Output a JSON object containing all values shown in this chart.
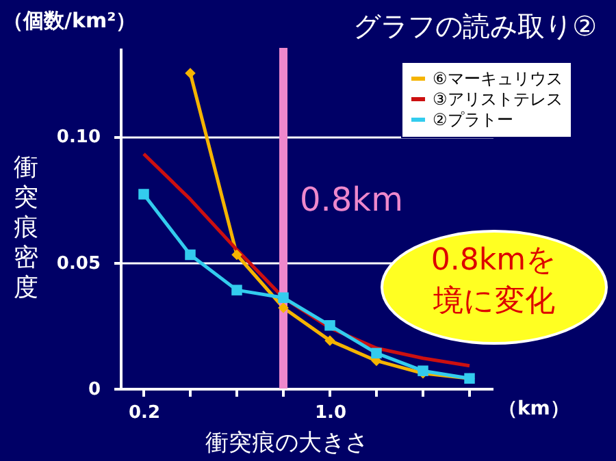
{
  "chart_data": {
    "type": "line",
    "title": "グラフの読み取り②",
    "xlabel": "衝突痕の大きさ",
    "ylabel": "衝突痕密度",
    "annotations": [
      "（個数/km²）",
      "（km）",
      "0.8kmを境に変化"
    ],
    "x": [
      0.2,
      0.4,
      0.6,
      0.8,
      1.0,
      1.2,
      1.4,
      1.6
    ],
    "series": [
      {
        "name": "⑥マーキュリウス",
        "color": "#f5b400",
        "marker": "diamond",
        "values": [
          null,
          0.125,
          0.053,
          0.032,
          0.019,
          0.011,
          0.006,
          0.004
        ]
      },
      {
        "name": "③アリストテレス",
        "color": "#cc1010",
        "marker": "none",
        "values": [
          0.093,
          0.075,
          0.055,
          0.036,
          0.024,
          0.016,
          0.012,
          0.009
        ]
      },
      {
        "name": "②プラトー",
        "color": "#33ccee",
        "marker": "square",
        "values": [
          0.077,
          0.053,
          0.039,
          0.036,
          0.025,
          0.014,
          0.007,
          0.004
        ]
      }
    ],
    "xlim": [
      0.1,
      1.7
    ],
    "xticks": [
      0.2,
      {
        "value": 0.4,
        "label": null
      },
      {
        "value": 0.6,
        "label": null
      },
      {
        "value": 0.8,
        "label": null
      },
      {
        "value": 1,
        "label": "1.0"
      },
      {
        "value": 1.2,
        "label": null
      },
      {
        "value": 1.4,
        "label": null
      },
      {
        "value": 1.6,
        "label": null
      }
    ],
    "ylim": [
      0,
      0.135
    ],
    "yticks": [
      0,
      0.05,
      {
        "value": 0.1,
        "label": "0.10"
      }
    ],
    "grid": "y",
    "legend": "top right",
    "ref_lines": [
      {
        "axis": "x",
        "value": 0.8,
        "label": "0.8km",
        "color": "#ee88cc"
      }
    ]
  }
}
